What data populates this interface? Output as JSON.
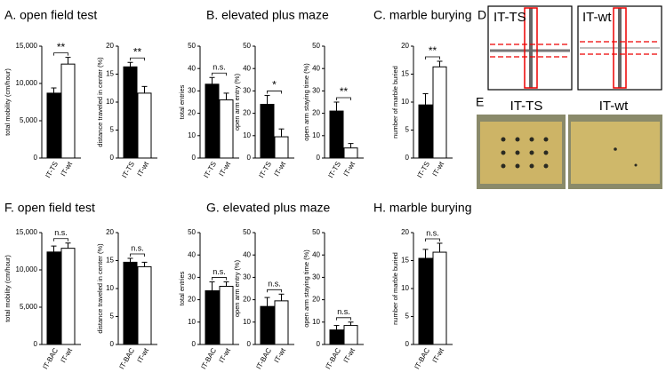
{
  "panel_titles": [
    "A. open field test",
    "B. elevated plus maze",
    "C. marble burying",
    "D",
    "E",
    "F. open field test",
    "G. elevated plus maze",
    "H. marble burying"
  ],
  "panel_d": {
    "labels": [
      "IT-TS",
      "IT-wt"
    ]
  },
  "panel_e": {
    "labels": [
      "IT-TS",
      "IT-wt"
    ]
  },
  "chart_data": [
    {
      "type": "bar",
      "ylabel": "total mobility (cm/hour)",
      "categories": [
        "IT-TS",
        "IT-wt"
      ],
      "values": [
        8700,
        12600
      ],
      "errors": [
        700,
        900
      ],
      "colors": [
        "#000000",
        "#ffffff"
      ],
      "ylim": [
        0,
        15000
      ],
      "yticks": [
        0,
        {
          "value": 5000,
          "label": "5,000"
        },
        {
          "value": 10000,
          "label": "10,000"
        },
        {
          "value": 15000,
          "label": "15,000"
        }
      ],
      "significance": "**"
    },
    {
      "type": "bar",
      "ylabel": "distance traveled in center (%)",
      "categories": [
        "IT-TS",
        "IT-wt"
      ],
      "values": [
        16.3,
        11.6
      ],
      "errors": [
        0.8,
        1.2
      ],
      "colors": [
        "#000000",
        "#ffffff"
      ],
      "ylim": [
        0,
        20
      ],
      "yticks": [
        0,
        5,
        10,
        15,
        20
      ],
      "significance": "**"
    },
    {
      "type": "bar",
      "ylabel": "total entries",
      "categories": [
        "IT-TS",
        "IT-wt"
      ],
      "values": [
        33,
        26
      ],
      "errors": [
        3,
        3
      ],
      "colors": [
        "#000000",
        "#ffffff"
      ],
      "ylim": [
        0,
        50
      ],
      "yticks": [
        0,
        10,
        20,
        30,
        40,
        50
      ],
      "significance": "n.s."
    },
    {
      "type": "bar",
      "ylabel": "open arm entry (%)",
      "categories": [
        "IT-TS",
        "IT-wt"
      ],
      "values": [
        24,
        9.5
      ],
      "errors": [
        4,
        3.5
      ],
      "colors": [
        "#000000",
        "#ffffff"
      ],
      "ylim": [
        0,
        50
      ],
      "yticks": [
        0,
        10,
        20,
        30,
        40,
        50
      ],
      "significance": "*"
    },
    {
      "type": "bar",
      "ylabel": "open arm staying time (%)",
      "categories": [
        "IT-TS",
        "IT-wt"
      ],
      "values": [
        21,
        4.5
      ],
      "errors": [
        4,
        2
      ],
      "colors": [
        "#000000",
        "#ffffff"
      ],
      "ylim": [
        0,
        50
      ],
      "yticks": [
        0,
        10,
        20,
        30,
        40,
        50
      ],
      "significance": "**"
    },
    {
      "type": "bar",
      "ylabel": "number of marble buried",
      "categories": [
        "IT-TS",
        "IT-wt"
      ],
      "values": [
        9.5,
        16.3
      ],
      "errors": [
        2,
        1
      ],
      "colors": [
        "#000000",
        "#ffffff"
      ],
      "ylim": [
        0,
        20
      ],
      "yticks": [
        0,
        5,
        10,
        15,
        20
      ],
      "significance": "**"
    },
    {
      "type": "bar",
      "ylabel": "total mobility (cm/hour)",
      "categories": [
        "IT-BAC",
        "IT-wt"
      ],
      "values": [
        12400,
        12900
      ],
      "errors": [
        800,
        700
      ],
      "colors": [
        "#000000",
        "#ffffff"
      ],
      "ylim": [
        0,
        15000
      ],
      "yticks": [
        0,
        {
          "value": 5000,
          "label": "5,000"
        },
        {
          "value": 10000,
          "label": "10,000"
        },
        {
          "value": 15000,
          "label": "15,000"
        }
      ],
      "significance": "n.s."
    },
    {
      "type": "bar",
      "ylabel": "distance traveled in center (%)",
      "categories": [
        "IT-BAC",
        "IT-wt"
      ],
      "values": [
        14.7,
        13.9
      ],
      "errors": [
        0.7,
        0.8
      ],
      "colors": [
        "#000000",
        "#ffffff"
      ],
      "ylim": [
        0,
        20
      ],
      "yticks": [
        0,
        5,
        10,
        15,
        20
      ],
      "significance": "n.s."
    },
    {
      "type": "bar",
      "ylabel": "total entries",
      "categories": [
        "IT-BAC",
        "IT-wt"
      ],
      "values": [
        24,
        26
      ],
      "errors": [
        4,
        2
      ],
      "colors": [
        "#000000",
        "#ffffff"
      ],
      "ylim": [
        0,
        50
      ],
      "yticks": [
        0,
        10,
        20,
        30,
        40,
        50
      ],
      "significance": "n.s."
    },
    {
      "type": "bar",
      "ylabel": "open arm entry (%)",
      "categories": [
        "IT-BAC",
        "IT-wt"
      ],
      "values": [
        17,
        19.5
      ],
      "errors": [
        4,
        3
      ],
      "colors": [
        "#000000",
        "#ffffff"
      ],
      "ylim": [
        0,
        50
      ],
      "yticks": [
        0,
        10,
        20,
        30,
        40,
        50
      ],
      "significance": "n.s."
    },
    {
      "type": "bar",
      "ylabel": "open arm staying time (%)",
      "categories": [
        "IT-BAC",
        "IT-wt"
      ],
      "values": [
        6.5,
        8.5
      ],
      "errors": [
        2,
        1.5
      ],
      "colors": [
        "#000000",
        "#ffffff"
      ],
      "ylim": [
        0,
        50
      ],
      "yticks": [
        0,
        10,
        20,
        30,
        40,
        50
      ],
      "significance": "n.s."
    },
    {
      "type": "bar",
      "ylabel": "number of marble buried",
      "categories": [
        "IT-BAC",
        "IT-wt"
      ],
      "values": [
        15.4,
        16.5
      ],
      "errors": [
        1.6,
        1.6
      ],
      "colors": [
        "#000000",
        "#ffffff"
      ],
      "ylim": [
        0,
        20
      ],
      "yticks": [
        0,
        5,
        10,
        15,
        20
      ],
      "significance": "n.s."
    }
  ]
}
